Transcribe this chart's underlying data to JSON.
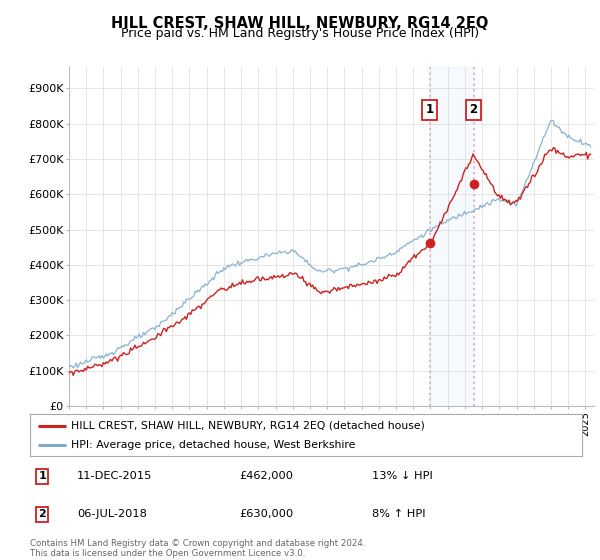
{
  "title": "HILL CREST, SHAW HILL, NEWBURY, RG14 2EQ",
  "subtitle": "Price paid vs. HM Land Registry's House Price Index (HPI)",
  "title_fontsize": 10.5,
  "subtitle_fontsize": 9,
  "ylabel_ticks": [
    "£0",
    "£100K",
    "£200K",
    "£300K",
    "£400K",
    "£500K",
    "£600K",
    "£700K",
    "£800K",
    "£900K"
  ],
  "ytick_values": [
    0,
    100000,
    200000,
    300000,
    400000,
    500000,
    600000,
    700000,
    800000,
    900000
  ],
  "ylim": [
    0,
    960000
  ],
  "xlim_start": 1995.0,
  "xlim_end": 2025.5,
  "hpi_color": "#7faacc",
  "price_color": "#cc2222",
  "transaction1_x": 2015.95,
  "transaction1_y": 462000,
  "transaction2_x": 2018.51,
  "transaction2_y": 630000,
  "vline_color": "#e8b4c0",
  "shade_color": "#ddeeff",
  "legend_label1": "HILL CREST, SHAW HILL, NEWBURY, RG14 2EQ (detached house)",
  "legend_label2": "HPI: Average price, detached house, West Berkshire",
  "note1_label": "1",
  "note1_date": "11-DEC-2015",
  "note1_price": "£462,000",
  "note1_hpi": "13% ↓ HPI",
  "note2_label": "2",
  "note2_date": "06-JUL-2018",
  "note2_price": "£630,000",
  "note2_hpi": "8% ↑ HPI",
  "footer": "Contains HM Land Registry data © Crown copyright and database right 2024.\nThis data is licensed under the Open Government Licence v3.0.",
  "background_color": "#ffffff",
  "grid_color": "#cccccc"
}
